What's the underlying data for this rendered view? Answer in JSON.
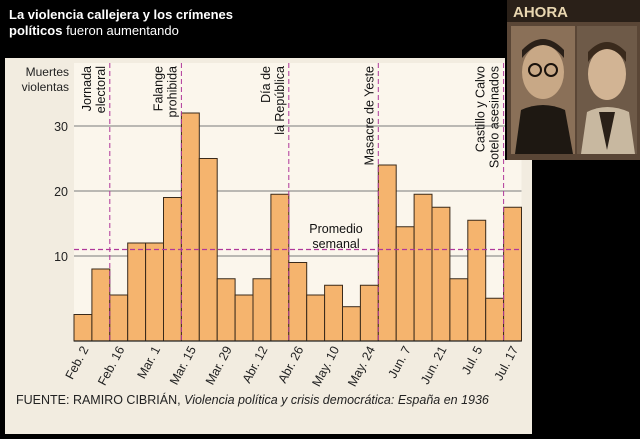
{
  "header": {
    "title_bold": "La violencia callejera y los crímenes políticos",
    "title_rest": " fueron aumentando"
  },
  "photo": {
    "masthead": "AHORA"
  },
  "source": {
    "prefix": "FUENTE: RAMIRO CIBRIÁN, ",
    "italic": "Violencia política y crisis democrática: España en 1936"
  },
  "chart_data": {
    "type": "bar",
    "ylabel": "Muertes violentas",
    "ylim": [
      0,
      40
    ],
    "yticks": [
      10,
      20,
      30
    ],
    "grid": true,
    "x_tick_labels": [
      "Feb. 2",
      "Feb. 16",
      "Mar. 1",
      "Mar. 15",
      "Mar. 29",
      "Abr. 12",
      "Abr. 26",
      "May. 10",
      "May. 24",
      "Jun. 7",
      "Jun. 21",
      "Jul. 5",
      "Jul. 17"
    ],
    "values": [
      1,
      8,
      4,
      12,
      12,
      19,
      32,
      25,
      6.5,
      4,
      6.5,
      19.5,
      9,
      4,
      5.5,
      2.2,
      5.5,
      24,
      14.5,
      19.5,
      17.5,
      6.5,
      15.5,
      3.5,
      17.5
    ],
    "bar_color": "#f5b46e",
    "average": {
      "value": 11,
      "label": "Promedio semanal"
    },
    "events": [
      {
        "label": "Jornada electoral",
        "bar": 2
      },
      {
        "label": "Falange prohibida",
        "bar": 6
      },
      {
        "label": "Día de la República",
        "bar": 12
      },
      {
        "label": "Masacre de Yeste",
        "bar": 17
      },
      {
        "label": "Castillo y Calvo Sotelo asesinados",
        "bar": 24
      }
    ]
  }
}
